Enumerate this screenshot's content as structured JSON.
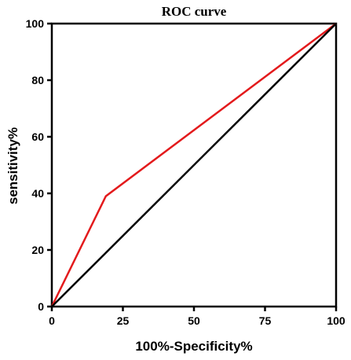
{
  "chart_data": {
    "type": "line",
    "title": "ROC curve",
    "xlabel": "100%-Specificity%",
    "ylabel": "sensitivity%",
    "xlim": [
      0,
      100
    ],
    "ylim": [
      0,
      100
    ],
    "x_ticks": [
      0,
      25,
      50,
      75,
      100
    ],
    "y_ticks": [
      0,
      20,
      40,
      60,
      80,
      100
    ],
    "x_tick_labels": [
      "0",
      "25",
      "50",
      "75",
      "100"
    ],
    "y_tick_labels": [
      "0",
      "20",
      "40",
      "60",
      "80",
      "100"
    ],
    "grid": false,
    "legend": "none",
    "series": [
      {
        "color": "#e31a1c",
        "x": [
          0,
          19,
          100
        ],
        "y": [
          0,
          39,
          100
        ]
      },
      {
        "color": "#000000",
        "x": [
          0,
          100
        ],
        "y": [
          0,
          100
        ]
      }
    ]
  }
}
